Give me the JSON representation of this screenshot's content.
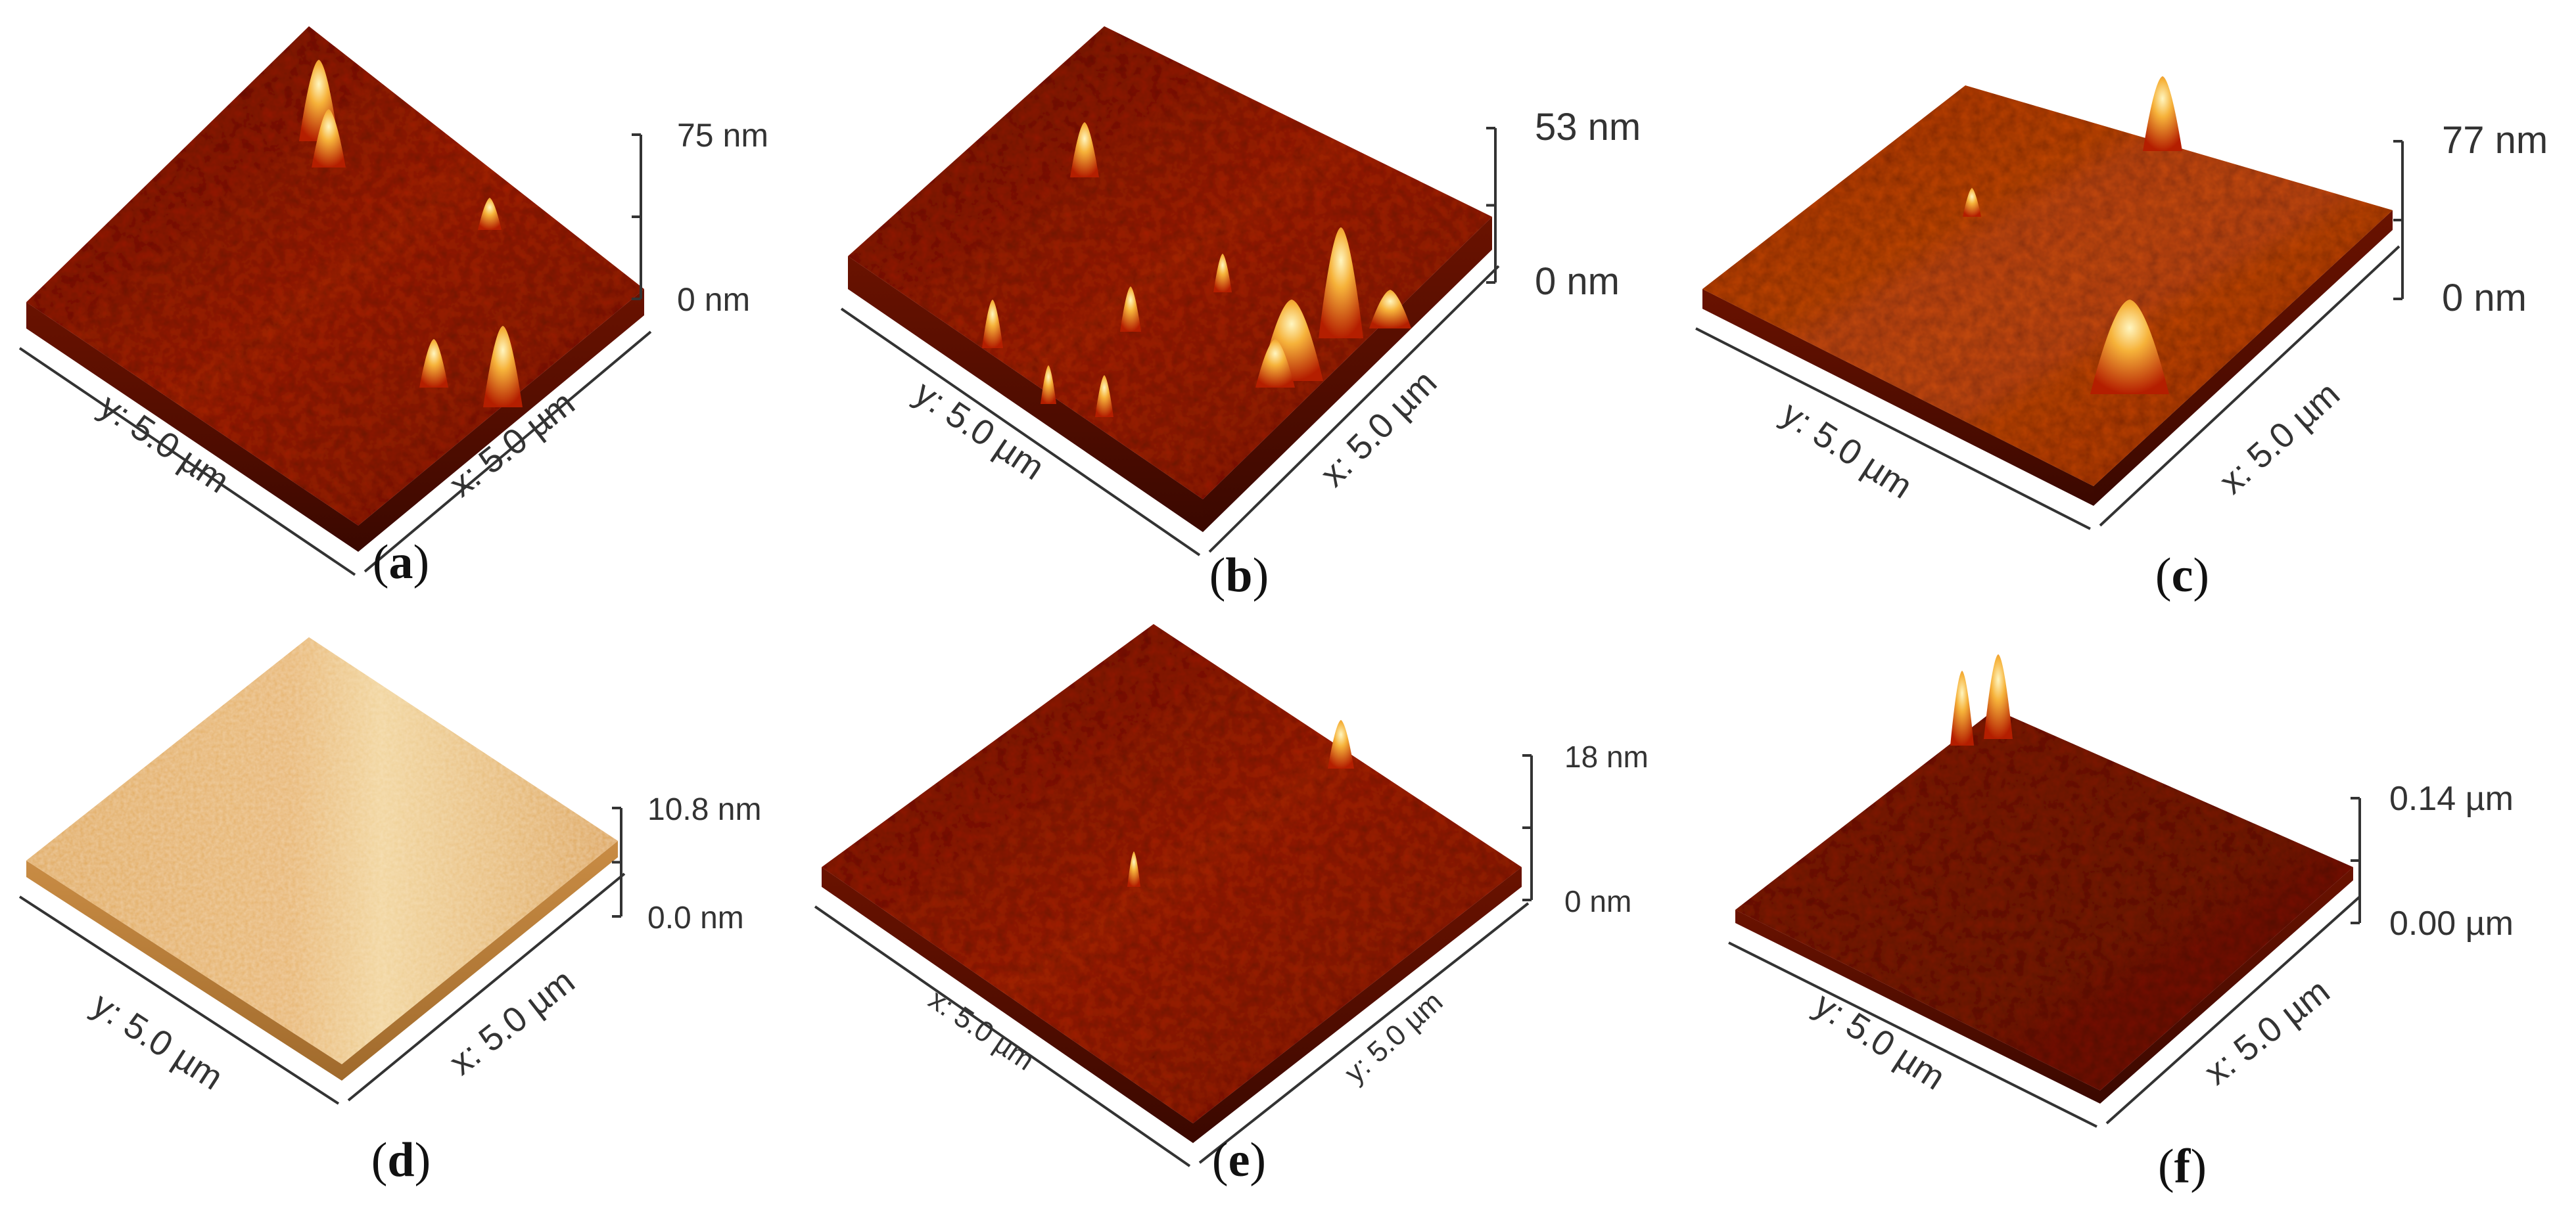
{
  "figure": {
    "panels": [
      {
        "id": "a",
        "letter": "a",
        "scale_top": "75 nm",
        "scale_bottom": "0 nm",
        "left_axis": "y: 5.0 µm",
        "right_axis": "x: 5.0 µm",
        "palette": "red",
        "peaks": 5
      },
      {
        "id": "b",
        "letter": "b",
        "scale_top": "53 nm",
        "scale_bottom": "0 nm",
        "left_axis": "y: 5.0 µm",
        "right_axis": "x: 5.0 µm",
        "palette": "red",
        "peaks": 10
      },
      {
        "id": "c",
        "letter": "c",
        "scale_top": "77 nm",
        "scale_bottom": "0 nm",
        "left_axis": "y: 5.0 µm",
        "right_axis": "x: 5.0 µm",
        "palette": "orange",
        "peaks": 3
      },
      {
        "id": "d",
        "letter": "d",
        "scale_top": "10.8 nm",
        "scale_bottom": "0.0 nm",
        "left_axis": "y: 5.0 µm",
        "right_axis": "x: 5.0 µm",
        "palette": "tan",
        "peaks": 0
      },
      {
        "id": "e",
        "letter": "e",
        "scale_top": "18 nm",
        "scale_bottom": "0 nm",
        "left_axis": "x: 5.0 µm",
        "right_axis": "y: 5.0 µm",
        "palette": "red",
        "peaks": 2
      },
      {
        "id": "f",
        "letter": "f",
        "scale_top": "0.14 µm",
        "scale_bottom": "0.00 µm",
        "left_axis": "y: 5.0 µm",
        "right_axis": "x: 5.0 µm",
        "palette": "darkred",
        "peaks": 2
      }
    ]
  }
}
